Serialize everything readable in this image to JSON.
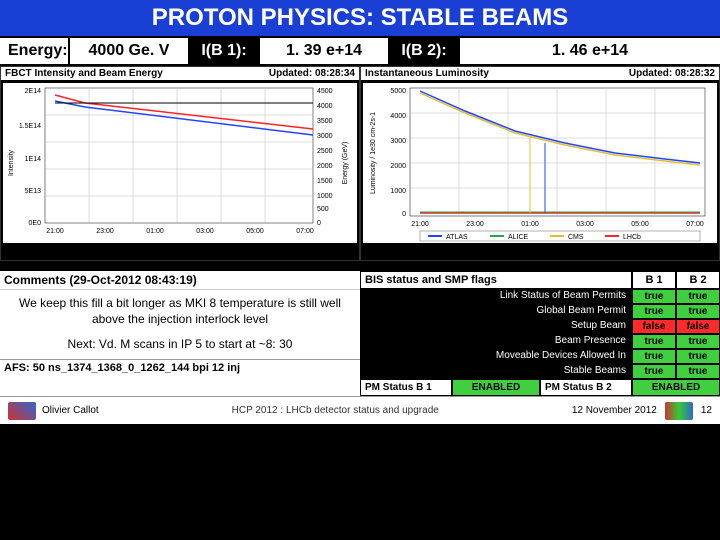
{
  "title": "PROTON PHYSICS: STABLE BEAMS",
  "info_row": {
    "energy_label": "Energy:",
    "energy_value": "4000 Ge. V",
    "ib1_label": "I(B 1):",
    "ib1_value": "1. 39 e+14",
    "ib2_label": "I(B 2):",
    "ib2_value": "1. 46 e+14"
  },
  "chart_left": {
    "title": "FBCT Intensity and Beam Energy",
    "updated": "Updated: 08:28:34",
    "y1_label": "Intensity",
    "y2_label": "Energy (GeV)",
    "y1_ticks": [
      "2E14",
      "1.5E14",
      "1E14",
      "5E13",
      "0E0"
    ],
    "y2_ticks": [
      "4500",
      "4000",
      "3500",
      "3000",
      "2500",
      "2000",
      "1500",
      "1000",
      "500",
      "0"
    ],
    "x_ticks": [
      "21:00",
      "23:00",
      "01:00",
      "03:00",
      "05:00",
      "07:00"
    ],
    "series": [
      {
        "color": "#ff2222",
        "points": [
          [
            0.05,
            0.05
          ],
          [
            0.15,
            0.1
          ],
          [
            0.95,
            0.3
          ]
        ]
      },
      {
        "color": "#2244ff",
        "points": [
          [
            0.05,
            0.1
          ],
          [
            0.15,
            0.14
          ],
          [
            0.95,
            0.35
          ]
        ]
      },
      {
        "color": "#000000",
        "points": [
          [
            0.05,
            0.11
          ],
          [
            0.95,
            0.11
          ]
        ]
      }
    ],
    "background": "#ffffff",
    "grid_color": "#bdbdbd"
  },
  "chart_right": {
    "title": "Instantaneous Luminosity",
    "updated": "Updated: 08:28:32",
    "y1_label": "Luminosity / 1e30 cm-2s-1",
    "y1_ticks": [
      "5000",
      "4000",
      "3000",
      "2000",
      "1000",
      "0"
    ],
    "x_ticks": [
      "21:00",
      "23:00",
      "01:00",
      "03:00",
      "05:00",
      "07:00"
    ],
    "series": [
      {
        "color": "#2244ff",
        "points": [
          [
            0.05,
            0.02
          ],
          [
            0.2,
            0.18
          ],
          [
            0.4,
            0.35
          ],
          [
            0.6,
            0.45
          ],
          [
            0.8,
            0.53
          ],
          [
            0.95,
            0.58
          ]
        ]
      },
      {
        "color": "#ff2222",
        "points": [
          [
            0.05,
            0.98
          ],
          [
            0.95,
            0.98
          ]
        ]
      }
    ],
    "legend_items": [
      "ATLAS",
      "ALICE",
      "CMS",
      "LHCb"
    ],
    "legend_colors": [
      "#2244ff",
      "#22aa44",
      "#e0c030",
      "#ff2222"
    ],
    "background": "#ffffff",
    "grid_color": "#bdbdbd"
  },
  "comments": {
    "header": "Comments (29-Oct-2012 08:43:19)",
    "body1": "We keep this fill a bit longer as MKI 8 temperature is still well above the injection interlock level",
    "body2": "Next: Vd. M scans in IP 5 to start at ~8: 30"
  },
  "afs_line": "AFS: 50 ns_1374_1368_0_1262_144 bpi 12 inj",
  "status": {
    "header": "BIS status and SMP flags",
    "b1": "B 1",
    "b2": "B 2",
    "rows": [
      {
        "label": "Link Status of Beam Permits",
        "b1": "true",
        "b2": "true"
      },
      {
        "label": "Global Beam Permit",
        "b1": "true",
        "b2": "true"
      },
      {
        "label": "Setup Beam",
        "b1": "false",
        "b2": "false"
      },
      {
        "label": "Beam Presence",
        "b1": "true",
        "b2": "true"
      },
      {
        "label": "Moveable Devices Allowed In",
        "b1": "true",
        "b2": "true"
      },
      {
        "label": "Stable Beams",
        "b1": "true",
        "b2": "true"
      }
    ],
    "pm1_label": "PM Status B 1",
    "pm1_value": "ENABLED",
    "pm2_label": "PM Status B 2",
    "pm2_value": "ENABLED"
  },
  "footer": {
    "author": "Olivier Callot",
    "center": "HCP 2012 : LHCb detector status and upgrade",
    "date": "12 November 2012",
    "page": "12"
  },
  "colors": {
    "title_bg": "#1a3fd4",
    "true": "#3fcf3f",
    "false": "#ff2a2a"
  }
}
